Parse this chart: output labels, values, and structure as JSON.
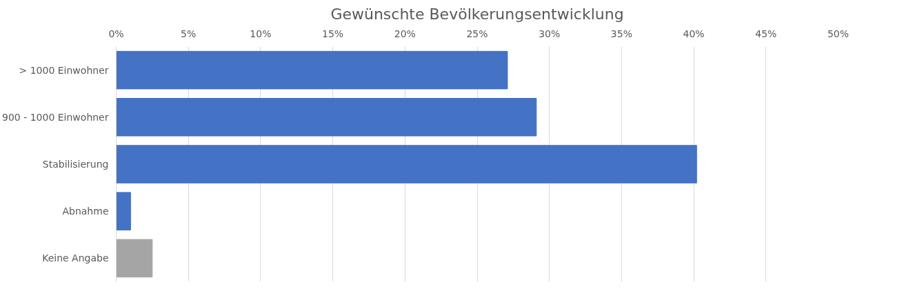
{
  "chart_data": {
    "type": "bar",
    "orientation": "horizontal",
    "title": "Gewünschte Bevölkerungsentwicklung",
    "categories": [
      "> 1000 Einwohner",
      "900 - 1000 Einwohner",
      "Stabilisierung",
      "Abnahme",
      "Keine Angabe"
    ],
    "values": [
      27.1,
      29.1,
      40.2,
      1.0,
      2.5
    ],
    "colors": [
      "#4472c4",
      "#4472c4",
      "#4472c4",
      "#4472c4",
      "#a5a5a5"
    ],
    "xlim": [
      0,
      50
    ],
    "xticks": [
      {
        "value": 0,
        "label": "0%"
      },
      {
        "value": 5,
        "label": "5%"
      },
      {
        "value": 10,
        "label": "10%"
      },
      {
        "value": 15,
        "label": "15%"
      },
      {
        "value": 20,
        "label": "20%"
      },
      {
        "value": 25,
        "label": "25%"
      },
      {
        "value": 30,
        "label": "30%"
      },
      {
        "value": 35,
        "label": "35%"
      },
      {
        "value": 40,
        "label": "40%"
      },
      {
        "value": 45,
        "label": "45%"
      },
      {
        "value": 50,
        "label": "50%"
      }
    ],
    "grid": "x"
  }
}
